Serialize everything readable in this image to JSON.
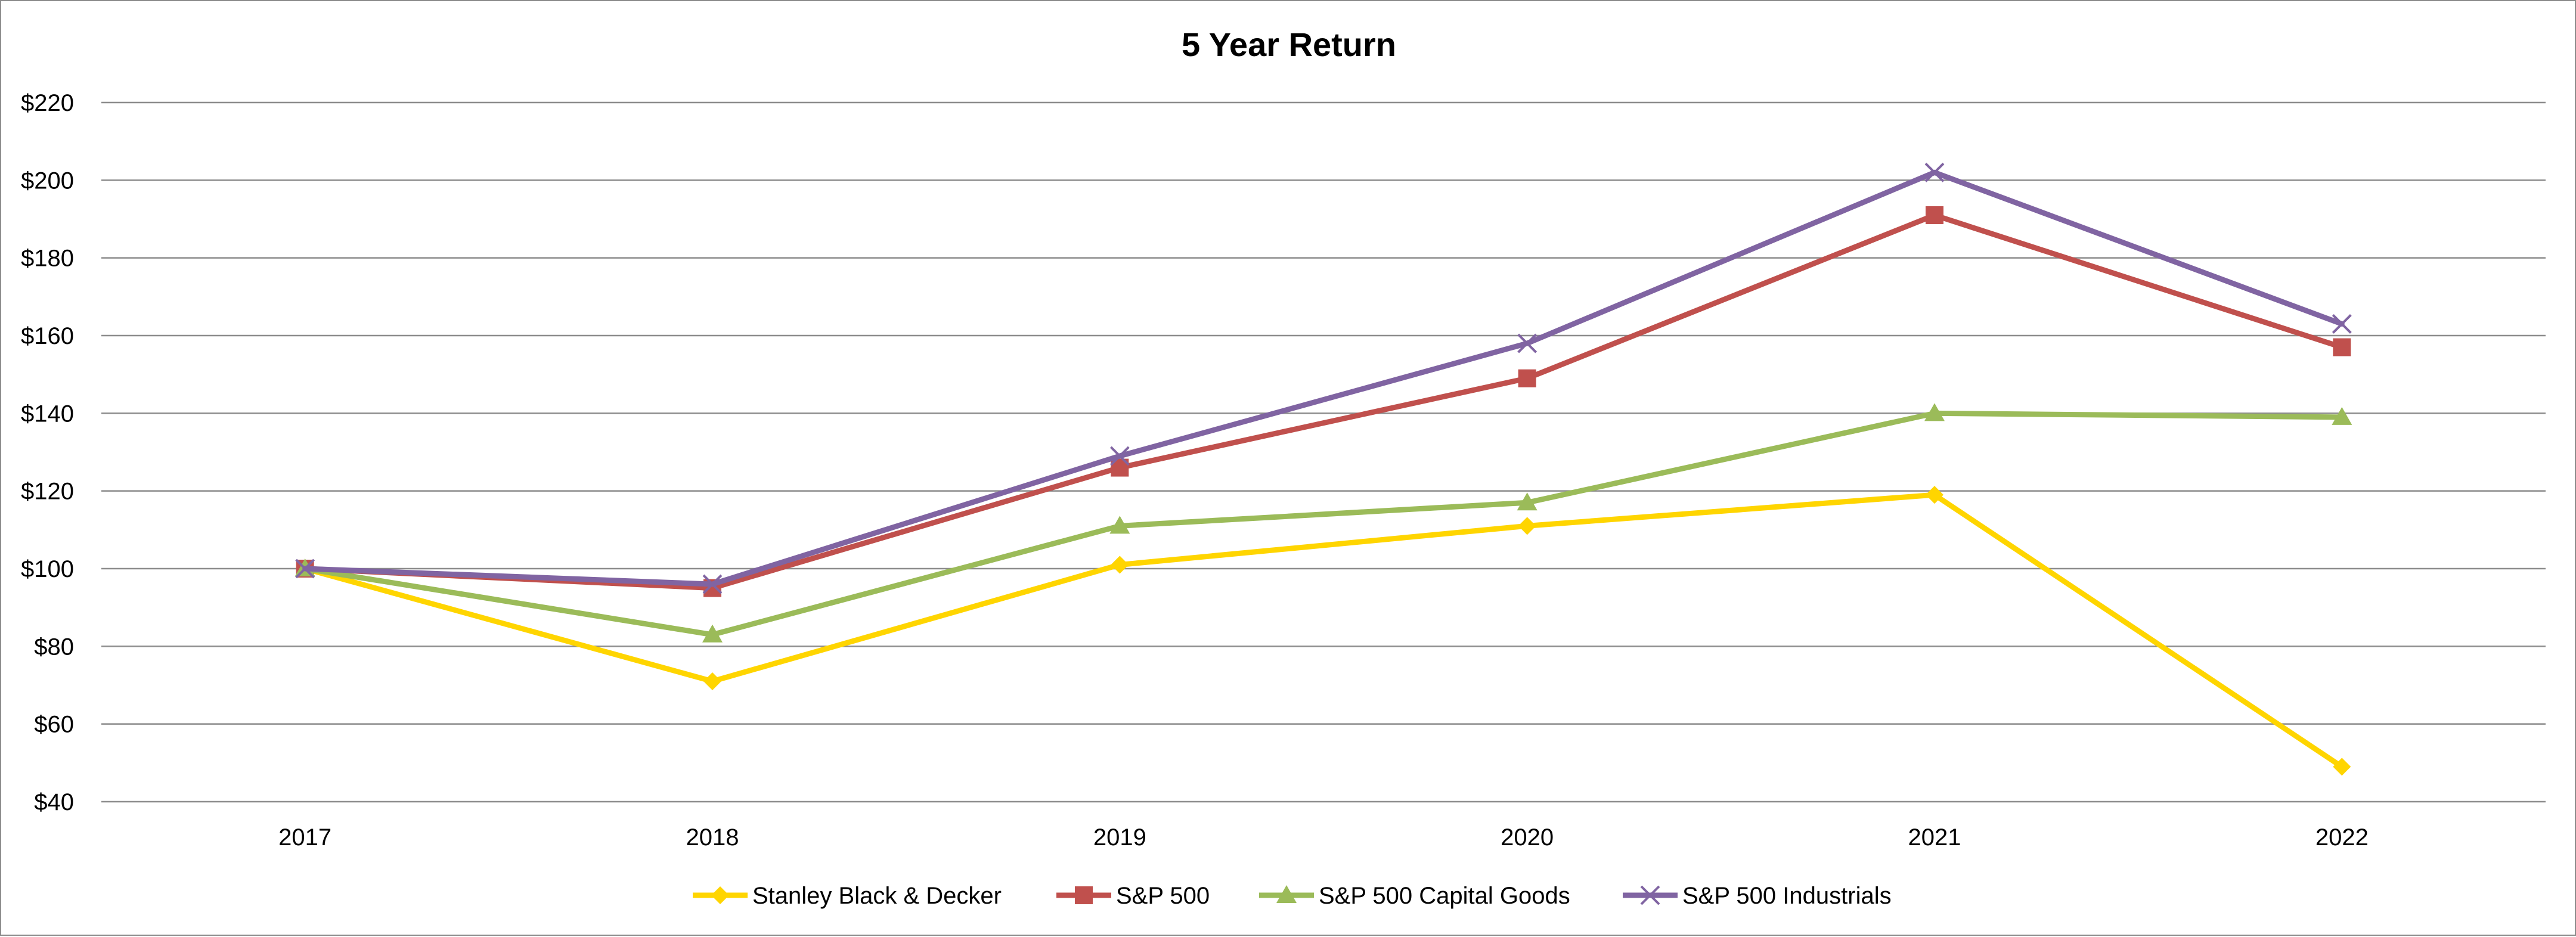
{
  "chart_data": {
    "type": "line",
    "title": "5 Year Return",
    "xlabel": "",
    "ylabel": "",
    "categories": [
      "2017",
      "2018",
      "2019",
      "2020",
      "2021",
      "2022"
    ],
    "ylim": [
      40,
      220
    ],
    "yticks": [
      40,
      60,
      80,
      100,
      120,
      140,
      160,
      180,
      200,
      220
    ],
    "ytick_labels": [
      "$40",
      "$60",
      "$80",
      "$100",
      "$120",
      "$140",
      "$160",
      "$180",
      "$200",
      "$220"
    ],
    "grid": true,
    "legend_position": "bottom",
    "series": [
      {
        "name": "Stanley Black & Decker",
        "color": "#FFD500",
        "marker": "diamond",
        "values": [
          100,
          71,
          101,
          111,
          119,
          49
        ]
      },
      {
        "name": "S&P 500",
        "color": "#C0504D",
        "marker": "square",
        "values": [
          100,
          95,
          126,
          149,
          191,
          157
        ]
      },
      {
        "name": "S&P 500 Capital Goods",
        "color": "#9BBB59",
        "marker": "triangle",
        "values": [
          100,
          83,
          111,
          117,
          140,
          139
        ]
      },
      {
        "name": "S&P 500 Industrials",
        "color": "#8064A2",
        "marker": "x",
        "values": [
          100,
          96,
          129,
          158,
          202,
          163
        ]
      }
    ]
  }
}
